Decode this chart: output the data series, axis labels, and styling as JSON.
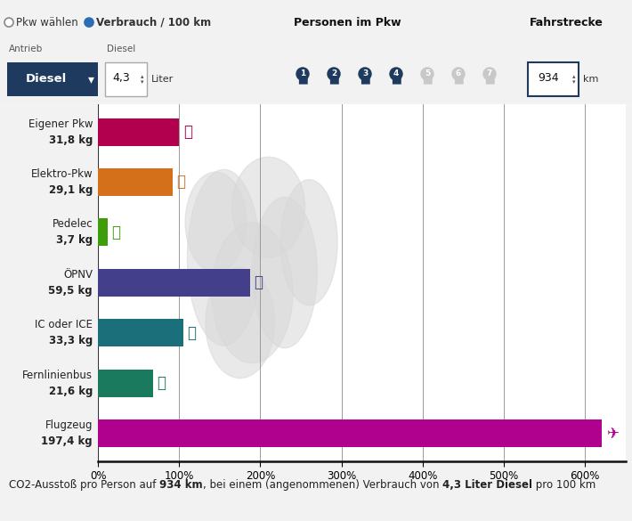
{
  "categories": [
    "Eigener Pkw",
    "Elektro-Pkw",
    "Pedelec",
    "ÖPNV",
    "IC oder ICE",
    "Fernlinienbus",
    "Flugzeug"
  ],
  "values_kg": [
    31.8,
    29.1,
    3.7,
    59.5,
    33.3,
    21.6,
    197.4
  ],
  "values_pct": [
    100.0,
    91.5,
    11.6,
    187.1,
    104.7,
    67.9,
    620.8
  ],
  "bar_colors": [
    "#b3004e",
    "#d46f1a",
    "#3d9e0a",
    "#433f8a",
    "#1a6f7a",
    "#1a7a5e",
    "#b0008e"
  ],
  "bg_color": "#f2f2f2",
  "chart_bg": "#ffffff",
  "grid_lines_pct": [
    0,
    100,
    200,
    300,
    400,
    500,
    600
  ],
  "xlim_max": 650,
  "dark_navy": "#1e3a5f",
  "light_gray_person": "#c8c8c8"
}
